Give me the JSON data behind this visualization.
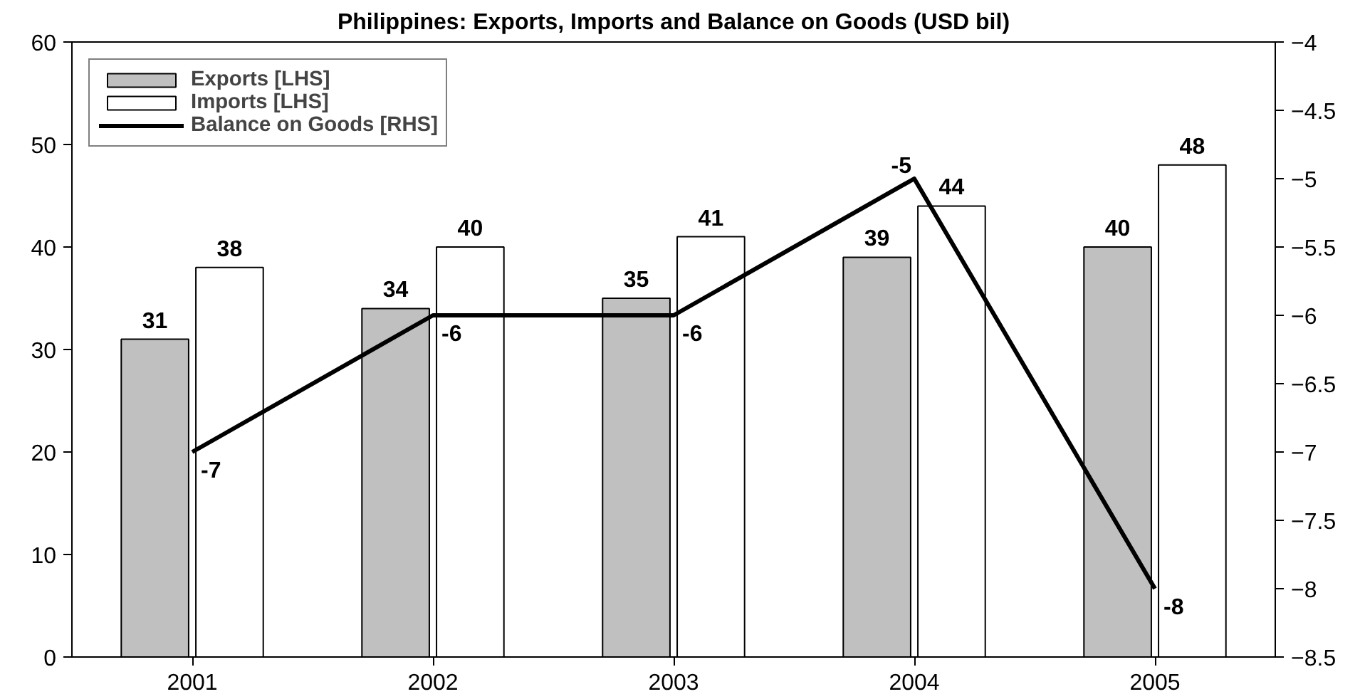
{
  "chart_data": {
    "type": "bar",
    "title": "Philippines: Exports, Imports and Balance on Goods (USD bil)",
    "categories": [
      "2001",
      "2002",
      "2003",
      "2004",
      "2005"
    ],
    "series": [
      {
        "name": "Exports [LHS]",
        "color": "#c0c0c0",
        "values": [
          31,
          34,
          35,
          39,
          40
        ]
      },
      {
        "name": "Imports [LHS]",
        "color": "#ffffff",
        "values": [
          38,
          40,
          41,
          44,
          48
        ]
      },
      {
        "name": "Balance on Goods [RHS]",
        "type": "line",
        "axis": "y2",
        "color": "#000000",
        "values": [
          -7,
          -6,
          -6,
          -5,
          -8
        ]
      }
    ],
    "ylim": [
      0,
      60
    ],
    "yticks": [
      0,
      10,
      20,
      30,
      40,
      50,
      60
    ],
    "y2lim": [
      -8.5,
      -4
    ],
    "y2ticks": [
      -8.5,
      -8,
      -7.5,
      -7,
      -6.5,
      -6,
      -5.5,
      -5,
      -4.5,
      -4
    ],
    "data_labels": true,
    "legend": "top left",
    "grid": false
  }
}
